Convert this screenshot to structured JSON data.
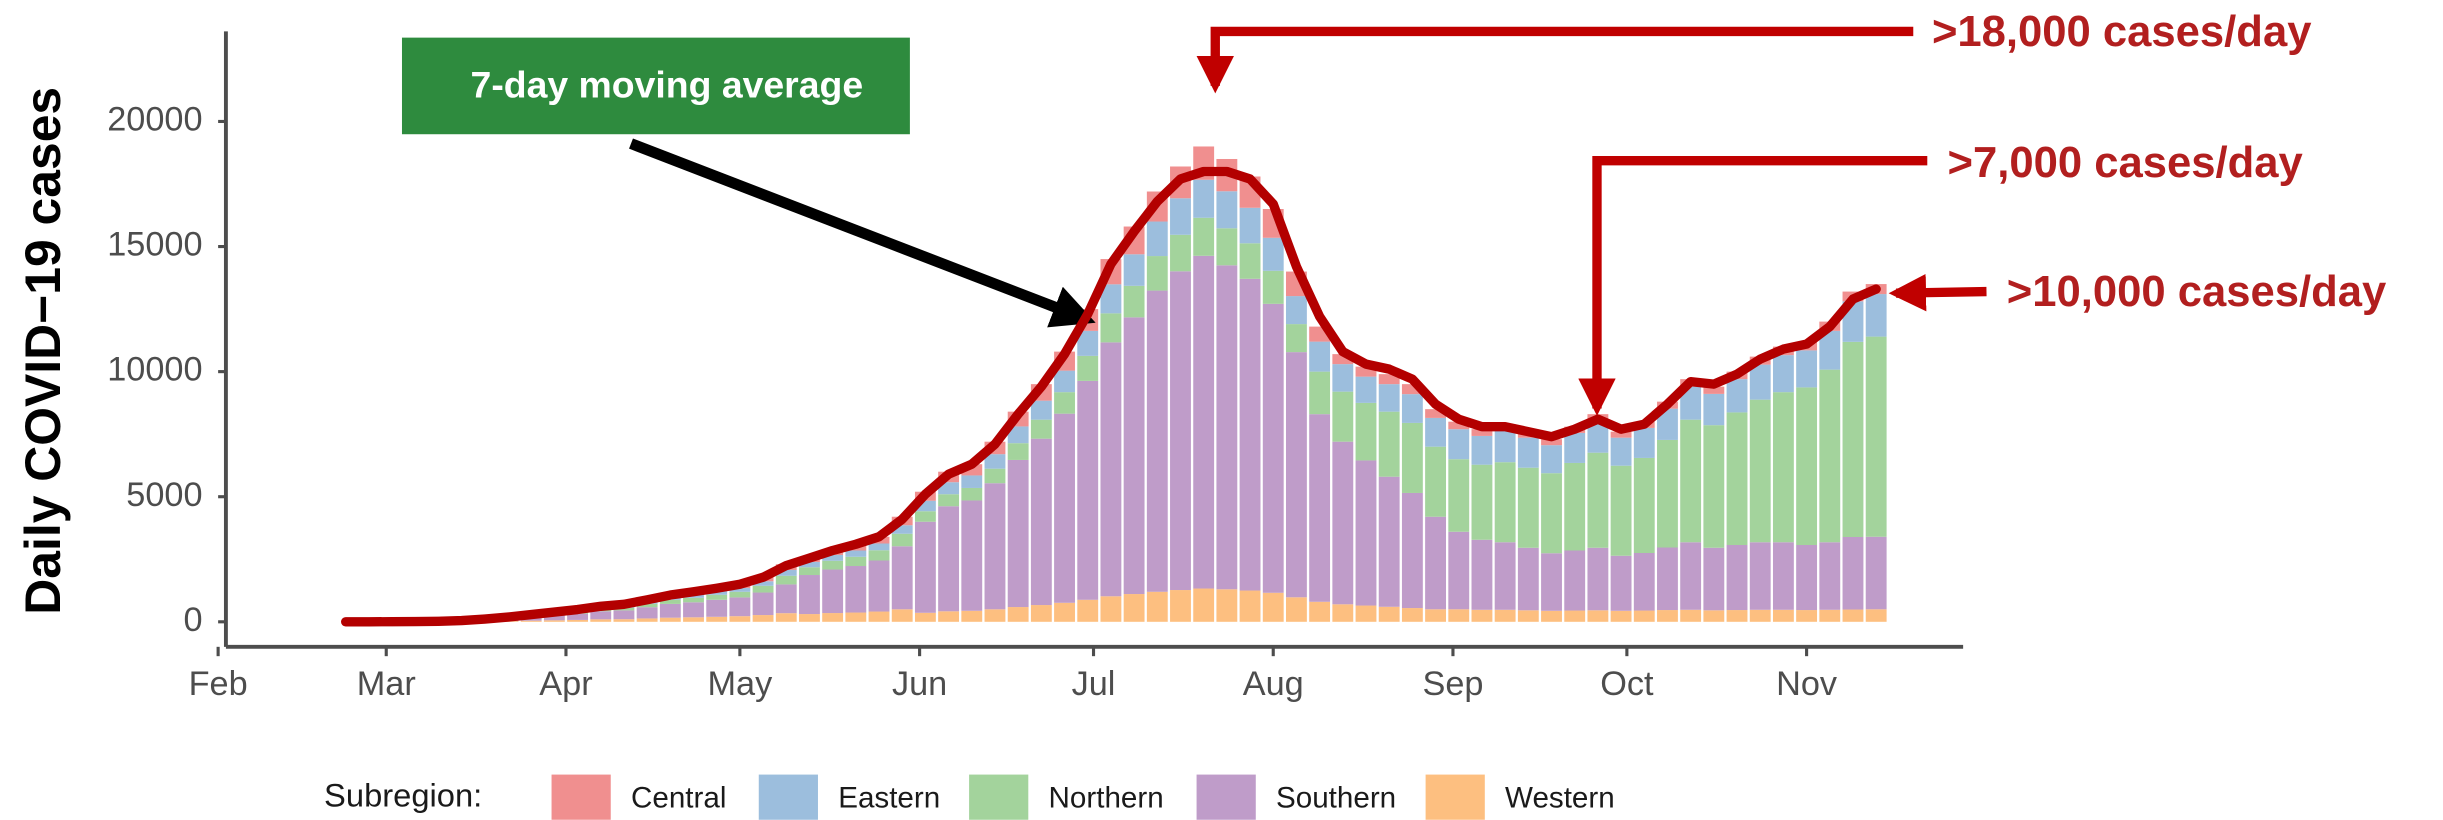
{
  "chart_data": {
    "type": "bar",
    "y_label": "Daily COVID−19 cases",
    "legend_title": "Subregion:",
    "annotations": [
      "7-day moving average",
      ">18,000 cases/day",
      ">7,000 cases/day",
      ">10,000 cases/day"
    ],
    "stacked": true,
    "grid": false,
    "legend_position": "bottom",
    "xlim": [
      0,
      301
    ],
    "ylim": [
      -1000,
      23600
    ],
    "xticks": [
      {
        "value": 0,
        "label": "Feb"
      },
      {
        "value": 29,
        "label": "Mar"
      },
      {
        "value": 60,
        "label": "Apr"
      },
      {
        "value": 90,
        "label": "May"
      },
      {
        "value": 121,
        "label": "Jun"
      },
      {
        "value": 151,
        "label": "Jul"
      },
      {
        "value": 182,
        "label": "Aug"
      },
      {
        "value": 213,
        "label": "Sep"
      },
      {
        "value": 243,
        "label": "Oct"
      },
      {
        "value": 274,
        "label": "Nov"
      }
    ],
    "yticks": [
      0,
      5000,
      10000,
      15000,
      20000
    ],
    "x": [
      22,
      26,
      30,
      34,
      38,
      42,
      46,
      50,
      54,
      58,
      62,
      66,
      70,
      74,
      78,
      82,
      86,
      90,
      94,
      98,
      102,
      106,
      110,
      114,
      118,
      122,
      126,
      130,
      134,
      138,
      142,
      146,
      150,
      154,
      158,
      162,
      166,
      170,
      174,
      178,
      182,
      186,
      190,
      194,
      198,
      202,
      206,
      210,
      214,
      218,
      222,
      226,
      230,
      234,
      238,
      242,
      246,
      250,
      254,
      258,
      262,
      266,
      270,
      274,
      278,
      282,
      286
    ],
    "series": [
      {
        "name": "Central",
        "color": "#f08f8f",
        "values": [
          0,
          0,
          0,
          1,
          2,
          6,
          12,
          20,
          30,
          40,
          50,
          65,
          70,
          90,
          110,
          120,
          135,
          150,
          180,
          230,
          210,
          230,
          250,
          270,
          340,
          360,
          420,
          450,
          500,
          590,
          660,
          760,
          870,
          1010,
          1110,
          1200,
          1270,
          1330,
          1290,
          1250,
          1150,
          980,
          600,
          400,
          400,
          400,
          400,
          350,
          300,
          270,
          270,
          240,
          240,
          250,
          260,
          240,
          250,
          280,
          300,
          290,
          300,
          320,
          340,
          350,
          370,
          390,
          400
        ]
      },
      {
        "name": "Eastern",
        "color": "#9cbedd",
        "values": [
          0,
          0,
          1,
          1,
          2,
          6,
          12,
          20,
          30,
          40,
          50,
          65,
          70,
          90,
          110,
          120,
          135,
          150,
          180,
          230,
          210,
          230,
          250,
          270,
          340,
          420,
          480,
          500,
          580,
          670,
          760,
          860,
          1000,
          1160,
          1260,
          1380,
          1460,
          1520,
          1480,
          1420,
          1320,
          1120,
          1200,
          1100,
          1050,
          1100,
          1150,
          1150,
          1200,
          1150,
          1250,
          1200,
          1120,
          1200,
          1280,
          1120,
          1200,
          1250,
          1320,
          1250,
          1330,
          1400,
          1480,
          1480,
          1550,
          1620,
          1700
        ]
      },
      {
        "name": "Northern",
        "color": "#a3d39c",
        "values": [
          0,
          0,
          1,
          1,
          3,
          9,
          18,
          30,
          45,
          60,
          75,
          100,
          105,
          135,
          165,
          180,
          200,
          225,
          270,
          345,
          310,
          350,
          370,
          410,
          500,
          420,
          480,
          500,
          580,
          670,
          760,
          860,
          1000,
          1160,
          1260,
          1380,
          1460,
          1520,
          1480,
          1420,
          1320,
          1120,
          1700,
          2000,
          2300,
          2600,
          2800,
          2800,
          2900,
          3000,
          3200,
          3200,
          3200,
          3500,
          3800,
          3600,
          3800,
          4300,
          4900,
          4900,
          5300,
          5700,
          6000,
          6300,
          6900,
          7800,
          8000
        ]
      },
      {
        "name": "Southern",
        "color": "#bf9cc9",
        "values": [
          0,
          0,
          2,
          5,
          10,
          30,
          60,
          100,
          150,
          200,
          250,
          320,
          350,
          450,
          550,
          600,
          680,
          750,
          900,
          1150,
          1560,
          1740,
          1860,
          2040,
          2520,
          3640,
          4200,
          4410,
          5040,
          5880,
          6650,
          7560,
          8750,
          10150,
          11060,
          12040,
          12740,
          13300,
          12950,
          12460,
          11550,
          9800,
          7500,
          6500,
          5800,
          5200,
          4600,
          3700,
          3100,
          2800,
          2700,
          2500,
          2300,
          2400,
          2500,
          2200,
          2300,
          2500,
          2700,
          2500,
          2600,
          2700,
          2700,
          2600,
          2700,
          2900,
          2900
        ]
      },
      {
        "name": "Western",
        "color": "#fdbf80",
        "values": [
          0,
          0,
          1,
          2,
          3,
          9,
          18,
          30,
          45,
          60,
          75,
          100,
          105,
          135,
          165,
          180,
          200,
          225,
          270,
          345,
          310,
          350,
          370,
          410,
          500,
          360,
          420,
          440,
          500,
          590,
          670,
          760,
          880,
          1020,
          1110,
          1200,
          1270,
          1330,
          1300,
          1250,
          1160,
          980,
          800,
          700,
          650,
          600,
          550,
          500,
          500,
          480,
          480,
          460,
          440,
          450,
          460,
          440,
          450,
          470,
          480,
          460,
          470,
          480,
          480,
          470,
          480,
          490,
          500
        ]
      }
    ],
    "moving_average": {
      "color": "#b30000",
      "values": [
        0,
        0,
        5,
        10,
        20,
        50,
        110,
        190,
        290,
        390,
        490,
        620,
        700,
        880,
        1070,
        1200,
        1340,
        1500,
        1780,
        2250,
        2550,
        2850,
        3100,
        3400,
        4100,
        5100,
        5900,
        6300,
        7100,
        8300,
        9400,
        10700,
        12300,
        14300,
        15600,
        16800,
        17700,
        18000,
        18000,
        17700,
        16700,
        14200,
        12200,
        10800,
        10300,
        10100,
        9700,
        8700,
        8100,
        7800,
        7800,
        7600,
        7400,
        7700,
        8100,
        7700,
        7900,
        8700,
        9600,
        9500,
        9900,
        10500,
        10900,
        11100,
        11800,
        12900,
        13300
      ]
    }
  }
}
